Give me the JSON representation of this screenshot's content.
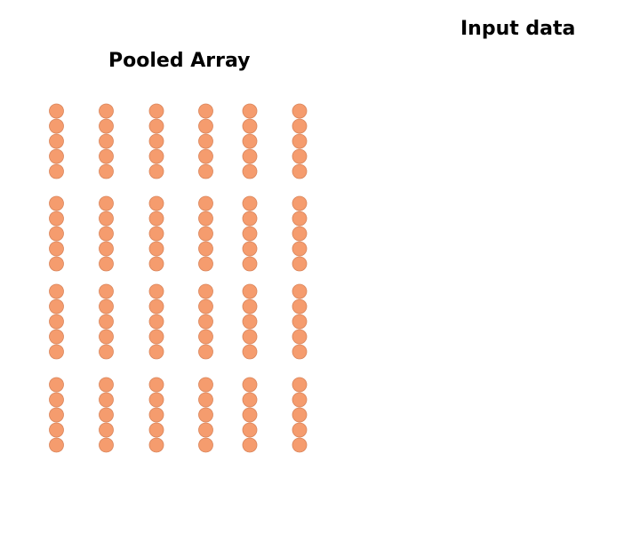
{
  "labels": {
    "pooled_array": "Pooled Array",
    "input_data": "Input data"
  },
  "colors": {
    "dot_fill": "#F59C6E",
    "dot_stroke": "#D9845A",
    "background": "#FFFFFF",
    "text": "#000000"
  },
  "pooled_array": {
    "columns": 6,
    "groups": 4,
    "dots_per_group": 5
  }
}
